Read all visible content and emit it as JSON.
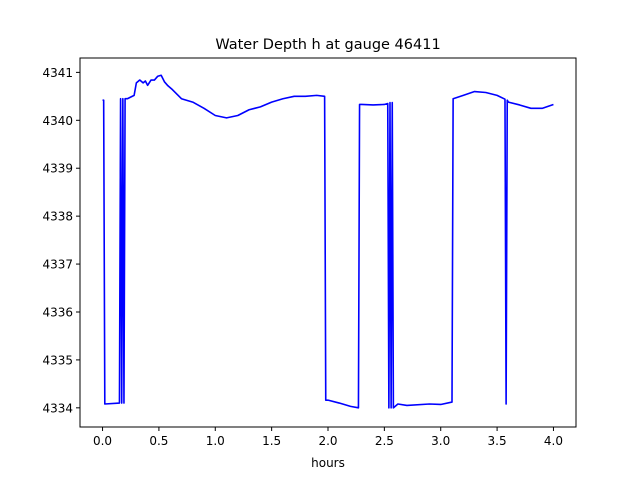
{
  "chart_data": {
    "type": "line",
    "title": "Water Depth h at gauge 46411",
    "xlabel": "hours",
    "ylabel": "",
    "xlim": [
      -0.2,
      4.2
    ],
    "ylim": [
      4333.6,
      4341.3
    ],
    "grid": false,
    "x_ticks": [
      0.0,
      0.5,
      1.0,
      1.5,
      2.0,
      2.5,
      3.0,
      3.5,
      4.0
    ],
    "x_tick_labels": [
      "0.0",
      "0.5",
      "1.0",
      "1.5",
      "2.0",
      "2.5",
      "3.0",
      "3.5",
      "4.0"
    ],
    "y_ticks": [
      4334,
      4335,
      4336,
      4337,
      4338,
      4339,
      4340,
      4341
    ],
    "y_tick_labels": [
      "4334",
      "4335",
      "4336",
      "4337",
      "4338",
      "4339",
      "4340",
      "4341"
    ],
    "line_color": "#0000ff",
    "series": [
      {
        "x": [
          0.0,
          0.01,
          0.02,
          0.15,
          0.16,
          0.17,
          0.18,
          0.19,
          0.2,
          0.22,
          0.28,
          0.3,
          0.33,
          0.36,
          0.38,
          0.4,
          0.43,
          0.46,
          0.49,
          0.52,
          0.55,
          0.58,
          0.62,
          0.7,
          0.8,
          0.9,
          1.0,
          1.1,
          1.2,
          1.3,
          1.4,
          1.5,
          1.6,
          1.7,
          1.8,
          1.9,
          1.97,
          1.98,
          2.0,
          2.1,
          2.2,
          2.27,
          2.28,
          2.3,
          2.4,
          2.5,
          2.53,
          2.54,
          2.55,
          2.56,
          2.57,
          2.58,
          2.62,
          2.7,
          2.9,
          3.0,
          3.1,
          3.11,
          3.2,
          3.3,
          3.4,
          3.5,
          3.57,
          3.58,
          3.59,
          3.6,
          3.7,
          3.8,
          3.9,
          4.0
        ],
        "y": [
          4340.42,
          4340.42,
          4334.08,
          4334.1,
          4340.45,
          4334.1,
          4340.45,
          4334.1,
          4340.45,
          4340.45,
          4340.52,
          4340.78,
          4340.84,
          4340.78,
          4340.82,
          4340.73,
          4340.84,
          4340.84,
          4340.92,
          4340.94,
          4340.8,
          4340.72,
          4340.64,
          4340.45,
          4340.38,
          4340.25,
          4340.1,
          4340.05,
          4340.1,
          4340.22,
          4340.28,
          4340.38,
          4340.45,
          4340.5,
          4340.5,
          4340.52,
          4340.5,
          4334.16,
          4334.16,
          4334.1,
          4334.03,
          4334.0,
          4340.33,
          4340.33,
          4340.32,
          4340.33,
          4340.35,
          4334.0,
          4340.37,
          4334.0,
          4340.37,
          4334.0,
          4334.08,
          4334.05,
          4334.08,
          4334.07,
          4334.12,
          4340.45,
          4340.52,
          4340.6,
          4340.58,
          4340.52,
          4340.44,
          4334.08,
          4340.42,
          4340.38,
          4340.32,
          4340.25,
          4340.25,
          4340.33
        ]
      }
    ]
  }
}
